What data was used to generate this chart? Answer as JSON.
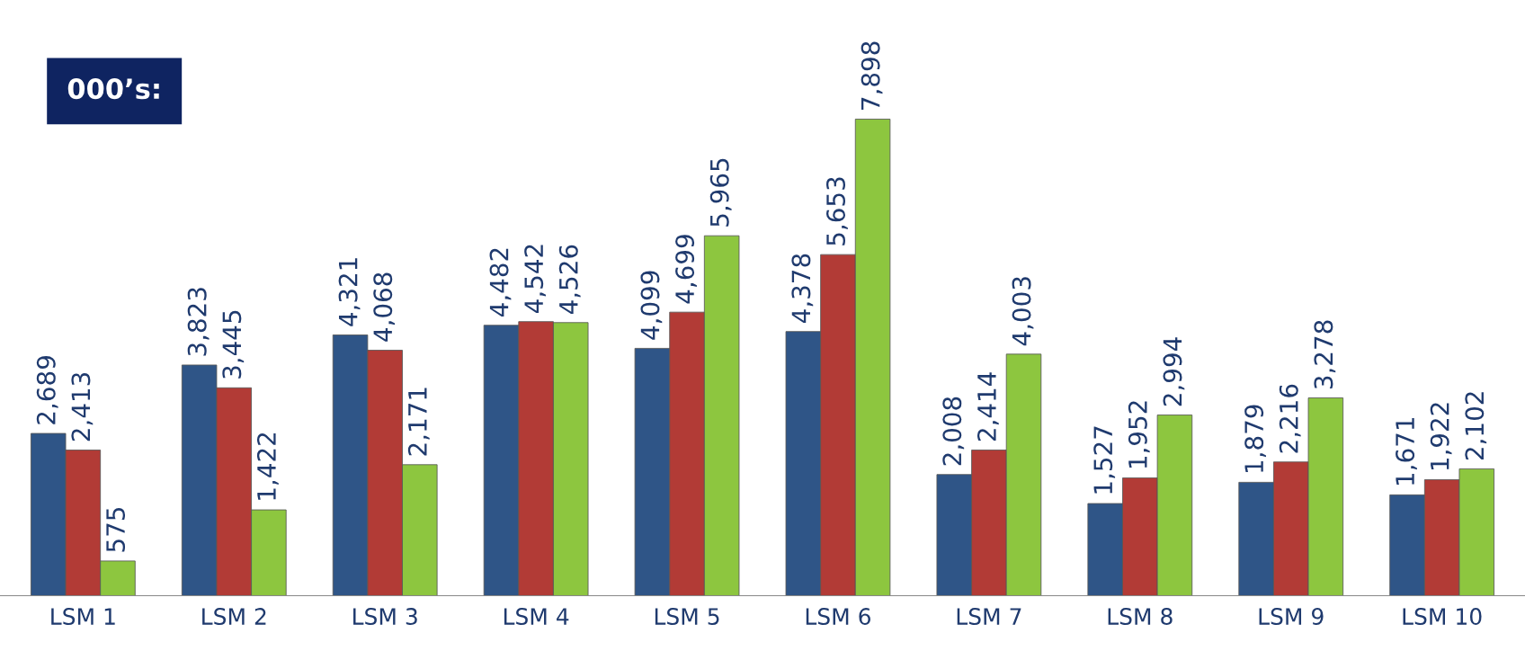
{
  "chart_data": {
    "type": "bar",
    "categories": [
      "LSM 1",
      "LSM 2",
      "LSM 3",
      "LSM 4",
      "LSM 5",
      "LSM 6",
      "LSM 7",
      "LSM 8",
      "LSM 9",
      "LSM 10"
    ],
    "series": [
      {
        "color": "#2f5587",
        "values": [
          2689,
          3823,
          4321,
          4482,
          4099,
          4378,
          2008,
          1527,
          1879,
          1671
        ],
        "value_labels": [
          "2,689",
          "3,823",
          "4,321",
          "4,482",
          "4,099",
          "4,378",
          "2,008",
          "1,527",
          "1,879",
          "1,671"
        ]
      },
      {
        "color": "#b23b36",
        "values": [
          2413,
          3445,
          4068,
          4542,
          4699,
          5653,
          2414,
          1952,
          2216,
          1922
        ],
        "value_labels": [
          "2,413",
          "3,445",
          "4,068",
          "4,542",
          "4,699",
          "5,653",
          "2,414",
          "1,952",
          "2,216",
          "1,922"
        ]
      },
      {
        "color": "#8dc63f",
        "values": [
          575,
          1422,
          2171,
          4526,
          5965,
          7898,
          4003,
          2994,
          3278,
          2102
        ],
        "value_labels": [
          "575",
          "1,422",
          "2,171",
          "4,526",
          "5,965",
          "7,898",
          "4,003",
          "2,994",
          "3,278",
          "2,102"
        ]
      }
    ],
    "annotations": [
      "000’s:"
    ]
  }
}
